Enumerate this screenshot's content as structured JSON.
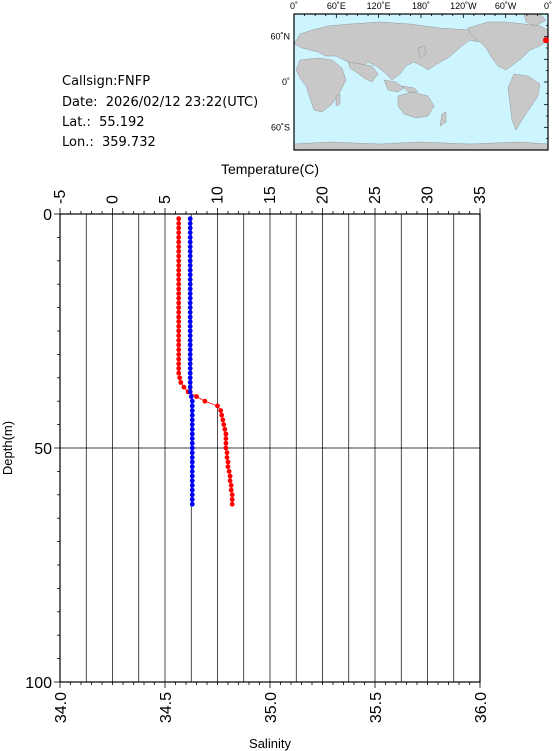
{
  "info": {
    "callsign": "Callsign:FNFP",
    "date": "Date:  2026/02/12 23:22(UTC)",
    "lat": "Lat.:  55.192",
    "lon": "Lon.:  359.732"
  },
  "map": {
    "lon_labels": [
      "0˚",
      "60˚E",
      "120˚E",
      "180˚",
      "120˚W",
      "60˚W",
      "0˚"
    ],
    "lat_labels": [
      "60˚N",
      "0˚",
      "60˚S"
    ],
    "ocean_color": "#ccf5ff",
    "land_color": "#c8c8c8",
    "station_color": "#ff0000",
    "station": {
      "lat": 55.192,
      "lon": 359.732
    }
  },
  "chart_data": {
    "type": "line",
    "title": "",
    "xlabel_top": "Temperature(C)",
    "xlabel_bottom": "Salinity",
    "ylabel": "Depth(m)",
    "temperature_range": [
      -5,
      35
    ],
    "temperature_ticks": [
      "-5",
      "0",
      "5",
      "10",
      "15",
      "20",
      "25",
      "30",
      "35"
    ],
    "salinity_range": [
      34.0,
      36.0
    ],
    "salinity_ticks": [
      "34.0",
      "34.5",
      "35.0",
      "35.5",
      "36.0"
    ],
    "depth_range": [
      0,
      100
    ],
    "depth_ticks": [
      "0",
      "50",
      "100"
    ],
    "grid": true,
    "series": [
      {
        "variable": "temperature",
        "color": "#ff0000",
        "points": [
          [
            6.3,
            1
          ],
          [
            6.3,
            2
          ],
          [
            6.3,
            3
          ],
          [
            6.3,
            4
          ],
          [
            6.3,
            5
          ],
          [
            6.3,
            6
          ],
          [
            6.3,
            7
          ],
          [
            6.3,
            8
          ],
          [
            6.3,
            9
          ],
          [
            6.3,
            10
          ],
          [
            6.3,
            11
          ],
          [
            6.3,
            12
          ],
          [
            6.3,
            13
          ],
          [
            6.3,
            14
          ],
          [
            6.3,
            15
          ],
          [
            6.3,
            16
          ],
          [
            6.3,
            17
          ],
          [
            6.3,
            18
          ],
          [
            6.3,
            19
          ],
          [
            6.3,
            20
          ],
          [
            6.3,
            21
          ],
          [
            6.3,
            22
          ],
          [
            6.3,
            23
          ],
          [
            6.3,
            24
          ],
          [
            6.3,
            25
          ],
          [
            6.3,
            26
          ],
          [
            6.3,
            27
          ],
          [
            6.3,
            28
          ],
          [
            6.3,
            29
          ],
          [
            6.3,
            30
          ],
          [
            6.3,
            31
          ],
          [
            6.3,
            32
          ],
          [
            6.3,
            33
          ],
          [
            6.3,
            34
          ],
          [
            6.4,
            35
          ],
          [
            6.5,
            36
          ],
          [
            6.8,
            37
          ],
          [
            7.2,
            38
          ],
          [
            8.0,
            39
          ],
          [
            8.8,
            40
          ],
          [
            10.0,
            41
          ],
          [
            10.3,
            42
          ],
          [
            10.4,
            43
          ],
          [
            10.5,
            44
          ],
          [
            10.6,
            45
          ],
          [
            10.7,
            46
          ],
          [
            10.8,
            47
          ],
          [
            10.8,
            48
          ],
          [
            10.8,
            49
          ],
          [
            10.8,
            50
          ],
          [
            10.9,
            51
          ],
          [
            10.9,
            52
          ],
          [
            11.0,
            53
          ],
          [
            11.0,
            54
          ],
          [
            11.1,
            55
          ],
          [
            11.2,
            56
          ],
          [
            11.2,
            57
          ],
          [
            11.3,
            58
          ],
          [
            11.3,
            59
          ],
          [
            11.4,
            60
          ],
          [
            11.4,
            61
          ],
          [
            11.4,
            62
          ]
        ]
      },
      {
        "variable": "salinity",
        "color": "#0000ff",
        "points": [
          [
            34.62,
            1
          ],
          [
            34.62,
            2
          ],
          [
            34.62,
            3
          ],
          [
            34.62,
            4
          ],
          [
            34.62,
            5
          ],
          [
            34.62,
            6
          ],
          [
            34.62,
            7
          ],
          [
            34.62,
            8
          ],
          [
            34.62,
            9
          ],
          [
            34.62,
            10
          ],
          [
            34.62,
            11
          ],
          [
            34.62,
            12
          ],
          [
            34.62,
            13
          ],
          [
            34.62,
            14
          ],
          [
            34.62,
            15
          ],
          [
            34.62,
            16
          ],
          [
            34.62,
            17
          ],
          [
            34.62,
            18
          ],
          [
            34.62,
            19
          ],
          [
            34.62,
            20
          ],
          [
            34.62,
            21
          ],
          [
            34.62,
            22
          ],
          [
            34.62,
            23
          ],
          [
            34.62,
            24
          ],
          [
            34.62,
            25
          ],
          [
            34.62,
            26
          ],
          [
            34.62,
            27
          ],
          [
            34.62,
            28
          ],
          [
            34.62,
            29
          ],
          [
            34.62,
            30
          ],
          [
            34.62,
            31
          ],
          [
            34.62,
            32
          ],
          [
            34.62,
            33
          ],
          [
            34.62,
            34
          ],
          [
            34.62,
            35
          ],
          [
            34.62,
            36
          ],
          [
            34.62,
            37
          ],
          [
            34.62,
            38
          ],
          [
            34.625,
            39
          ],
          [
            34.63,
            40
          ],
          [
            34.63,
            41
          ],
          [
            34.63,
            42
          ],
          [
            34.63,
            43
          ],
          [
            34.63,
            44
          ],
          [
            34.63,
            45
          ],
          [
            34.63,
            46
          ],
          [
            34.63,
            47
          ],
          [
            34.63,
            48
          ],
          [
            34.63,
            49
          ],
          [
            34.63,
            50
          ],
          [
            34.63,
            51
          ],
          [
            34.63,
            52
          ],
          [
            34.63,
            53
          ],
          [
            34.63,
            54
          ],
          [
            34.63,
            55
          ],
          [
            34.63,
            56
          ],
          [
            34.63,
            57
          ],
          [
            34.63,
            58
          ],
          [
            34.63,
            59
          ],
          [
            34.63,
            60
          ],
          [
            34.63,
            61
          ],
          [
            34.63,
            62
          ]
        ]
      }
    ]
  }
}
